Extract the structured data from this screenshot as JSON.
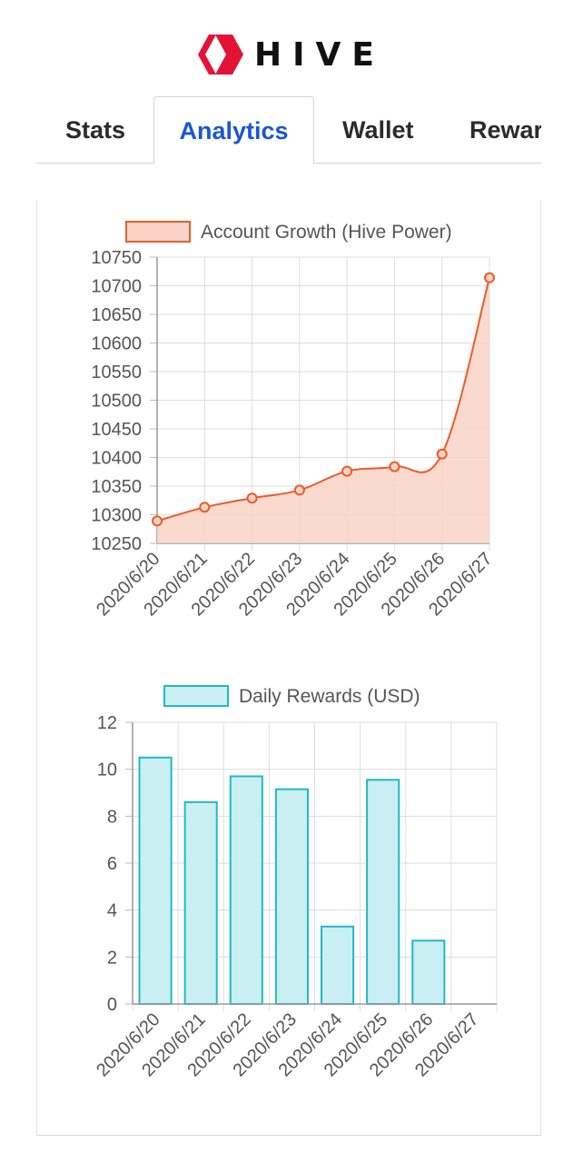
{
  "brand": {
    "name": "HIVE",
    "accent": "#e31337"
  },
  "tabs": [
    {
      "label": "Stats",
      "active": false
    },
    {
      "label": "Analytics",
      "active": true
    },
    {
      "label": "Wallet",
      "active": false
    },
    {
      "label": "Rewar",
      "active": false
    }
  ],
  "colors": {
    "active_tab": "#1a56d6",
    "growth_line": "#ec5b2b",
    "growth_fill": "#f9d3c6",
    "rewards_border": "#21b9c4",
    "rewards_fill": "#c9eff3"
  },
  "chart_data": [
    {
      "type": "line",
      "title": "",
      "legend": "Account Growth (Hive Power)",
      "categories": [
        "2020/6/20",
        "2020/6/21",
        "2020/6/22",
        "2020/6/23",
        "2020/6/24",
        "2020/6/25",
        "2020/6/26",
        "2020/6/27"
      ],
      "values": [
        10289,
        10313,
        10329,
        10343,
        10376,
        10384,
        10406,
        10714
      ],
      "ylim": [
        10250,
        10750
      ],
      "yticks": [
        10250,
        10300,
        10350,
        10400,
        10450,
        10500,
        10550,
        10600,
        10650,
        10700,
        10750
      ],
      "fill": true,
      "grid": true
    },
    {
      "type": "bar",
      "title": "",
      "legend": "Daily Rewards (USD)",
      "categories": [
        "2020/6/20",
        "2020/6/21",
        "2020/6/22",
        "2020/6/23",
        "2020/6/24",
        "2020/6/25",
        "2020/6/26",
        "2020/6/27"
      ],
      "values": [
        10.5,
        8.6,
        9.7,
        9.15,
        3.3,
        9.55,
        2.7,
        0
      ],
      "ylim": [
        0,
        12
      ],
      "yticks": [
        0,
        2,
        4,
        6,
        8,
        10,
        12
      ],
      "grid": true
    }
  ]
}
